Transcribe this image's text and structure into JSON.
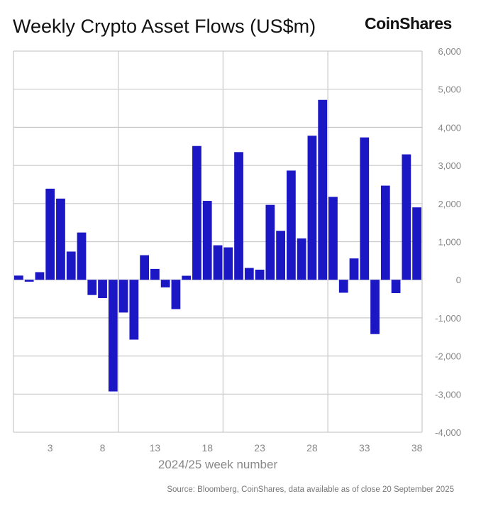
{
  "title": "Weekly Crypto Asset Flows (US$m)",
  "brand": "CoinShares",
  "source": "Source: Bloomberg, CoinShares, data available as of close 20 September 2025",
  "chart_data": {
    "type": "bar",
    "title": "Weekly Crypto Asset Flows (US$m)",
    "xlabel": "2024/25 week number",
    "ylabel": "US$m",
    "ylim": [
      -4000,
      6000
    ],
    "yticks": [
      6000,
      5000,
      4000,
      3000,
      2000,
      1000,
      0,
      -1000,
      -2000,
      -3000,
      -4000
    ],
    "ytick_labels": [
      "6,000",
      "5,000",
      "4,000",
      "3,000",
      "2,000",
      "1,000",
      "0",
      "-1,000",
      "-2,000",
      "-3,000",
      "-4,000"
    ],
    "xtick_labels": [
      "3",
      "8",
      "13",
      "18",
      "23",
      "28",
      "33",
      "38"
    ],
    "grid": true,
    "bar_color": "#1c17c4",
    "categories": [
      0,
      1,
      2,
      3,
      4,
      5,
      6,
      7,
      8,
      9,
      10,
      11,
      12,
      13,
      14,
      15,
      16,
      17,
      18,
      19,
      20,
      21,
      22,
      23,
      24,
      25,
      26,
      27,
      28,
      29,
      30,
      31,
      32,
      33,
      34,
      35,
      36,
      37,
      38
    ],
    "values": [
      110,
      -50,
      200,
      2390,
      2130,
      740,
      1240,
      -400,
      -480,
      -2930,
      -860,
      -1570,
      645,
      285,
      -200,
      -770,
      105,
      3510,
      2070,
      905,
      850,
      3350,
      310,
      265,
      1965,
      1285,
      2865,
      1085,
      3780,
      4720,
      2175,
      -340,
      560,
      3735,
      -1425,
      2470,
      -350,
      3290,
      1900
    ]
  }
}
